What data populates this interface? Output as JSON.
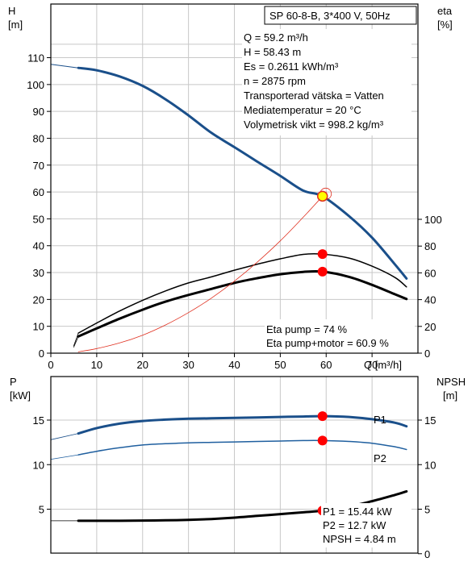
{
  "colors": {
    "head": "#1a4f8a",
    "p1": "#1a4f8a",
    "p2": "#1f5f9f",
    "eta": "#000000",
    "system": "#e03020",
    "npsh": "#000000",
    "marker": "#ff0000",
    "duty": "#ffff00"
  },
  "chart_data": [
    {
      "type": "line",
      "title": "SP 60-8-B, 3*400 V, 50Hz",
      "xlabel": "Q [m³/h]",
      "ylabel_left": {
        "name": "H",
        "unit": "[m]"
      },
      "ylabel_right": {
        "name": "eta",
        "unit": "[%]"
      },
      "xlim": [
        0,
        80
      ],
      "ylim_left": [
        0,
        120
      ],
      "ylim_right": [
        0,
        100
      ],
      "xticks": [
        0,
        10,
        20,
        30,
        40,
        50,
        60,
        70
      ],
      "yticks_left": [
        0,
        10,
        20,
        30,
        40,
        50,
        60,
        70,
        80,
        90,
        100,
        110
      ],
      "yticks_right": [
        0,
        20,
        40,
        60,
        80,
        100
      ],
      "grid": true,
      "duty_point": {
        "x": 59.2,
        "y": 58.43
      },
      "info_lines": [
        "Q = 59.2 m³/h",
        "H = 58.43 m",
        "Es = 0.2611 kWh/m³",
        "n = 2875 rpm",
        "Transporterad vätska = Vatten",
        "Mediatemperatur = 20 °C",
        "Volymetrisk vikt = 998.2 kg/m³"
      ],
      "eta_lines": [
        "Eta pump = 74 %",
        "Eta pump+motor = 60.9 %"
      ],
      "series": [
        {
          "axis": "left",
          "color_key": "head",
          "width": 3,
          "x": [
            6,
            10,
            15,
            20,
            25,
            30,
            35,
            40,
            45,
            50,
            55,
            59.2,
            65,
            70,
            75,
            77.5
          ],
          "y": [
            106.2,
            105.3,
            103.0,
            99.5,
            94.5,
            88.5,
            82.0,
            76.7,
            71.3,
            66.0,
            60.5,
            58.43,
            51.0,
            43.0,
            33.0,
            27.8
          ]
        },
        {
          "axis": "left",
          "color_key": "head",
          "width": 1,
          "extrapolated": true,
          "x": [
            0,
            6
          ],
          "y": [
            107.5,
            106.2
          ]
        },
        {
          "axis": "right",
          "color_key": "eta",
          "width": 1.5,
          "x": [
            6,
            10,
            15,
            20,
            25,
            30,
            35,
            40,
            45,
            50,
            55,
            59.2,
            65,
            70,
            75,
            77.5
          ],
          "y": [
            15.0,
            22.5,
            31.5,
            39.5,
            46.5,
            52.5,
            57.0,
            62.0,
            66.5,
            70.5,
            73.8,
            74.0,
            71.0,
            65.0,
            56.5,
            49.5
          ]
        },
        {
          "axis": "right",
          "color_key": "eta",
          "width": 3,
          "x": [
            6,
            10,
            15,
            20,
            25,
            30,
            35,
            40,
            45,
            50,
            55,
            59.2,
            65,
            70,
            75,
            77.5
          ],
          "y": [
            12.5,
            18.5,
            25.8,
            32.5,
            38.5,
            43.5,
            48.0,
            52.5,
            56.0,
            59.0,
            60.7,
            60.9,
            57.0,
            51.0,
            44.0,
            40.5
          ]
        },
        {
          "axis": "right",
          "color_key": "eta",
          "width": 0.8,
          "extrapolated": true,
          "x": [
            5,
            6
          ],
          "y": [
            5.5,
            15.0
          ]
        },
        {
          "axis": "right",
          "color_key": "eta",
          "width": 0.8,
          "extrapolated": true,
          "x": [
            5,
            6
          ],
          "y": [
            4.5,
            12.5
          ]
        },
        {
          "axis": "left",
          "color_key": "system",
          "width": 0.8,
          "x": [
            6,
            10,
            15,
            20,
            25,
            30,
            35,
            40,
            45,
            50,
            55,
            59.2,
            60
          ],
          "y": [
            0.5,
            1.7,
            3.8,
            6.7,
            10.5,
            15.1,
            20.5,
            26.8,
            33.9,
            41.8,
            50.6,
            58.43,
            60.0
          ]
        }
      ],
      "markers": [
        {
          "axis": "right",
          "x": 59.2,
          "y": 74.0,
          "color_key": "marker"
        },
        {
          "axis": "right",
          "x": 59.2,
          "y": 60.9,
          "color_key": "marker"
        }
      ]
    },
    {
      "type": "line",
      "xlabel": "",
      "ylabel_left": {
        "name": "P",
        "unit": "[kW]"
      },
      "ylabel_right": {
        "name": "NPSH",
        "unit": "[m]"
      },
      "xlim": [
        0,
        80
      ],
      "ylim_left": [
        0,
        18
      ],
      "ylim_right": [
        0,
        18
      ],
      "yticks_left": [
        5,
        10,
        15
      ],
      "yticks_right": [
        0,
        5,
        10,
        15
      ],
      "grid": true,
      "result_lines": [
        "P1 = 15.44 kW",
        "P2 = 12.7 kW",
        "NPSH = 4.84 m"
      ],
      "series": [
        {
          "name": "P1",
          "axis": "left",
          "color_key": "p1",
          "width": 3,
          "x": [
            6,
            10,
            15,
            20,
            25,
            30,
            35,
            40,
            45,
            50,
            55,
            59.2,
            65,
            70,
            75,
            77.5
          ],
          "y": [
            13.5,
            14.1,
            14.6,
            14.9,
            15.05,
            15.15,
            15.2,
            15.25,
            15.3,
            15.35,
            15.4,
            15.44,
            15.35,
            15.1,
            14.7,
            14.3
          ]
        },
        {
          "name": "P2",
          "axis": "left",
          "color_key": "p2",
          "width": 1.5,
          "x": [
            6,
            10,
            15,
            20,
            25,
            30,
            35,
            40,
            45,
            50,
            55,
            59.2,
            65,
            70,
            75,
            77.5
          ],
          "y": [
            11.1,
            11.5,
            11.9,
            12.2,
            12.35,
            12.45,
            12.5,
            12.55,
            12.6,
            12.65,
            12.7,
            12.7,
            12.6,
            12.4,
            12.0,
            11.7
          ]
        },
        {
          "axis": "left",
          "color_key": "p1",
          "width": 0.8,
          "extrapolated": true,
          "x": [
            0,
            6
          ],
          "y": [
            12.8,
            13.5
          ]
        },
        {
          "axis": "left",
          "color_key": "p2",
          "width": 0.8,
          "extrapolated": true,
          "x": [
            0,
            6
          ],
          "y": [
            10.6,
            11.1
          ]
        },
        {
          "name": "NPSH",
          "axis": "right",
          "color_key": "npsh",
          "width": 3,
          "x": [
            6,
            10,
            15,
            20,
            25,
            30,
            35,
            40,
            45,
            50,
            55,
            59.2,
            65,
            70,
            75,
            77.5
          ],
          "y": [
            3.7,
            3.7,
            3.7,
            3.72,
            3.75,
            3.8,
            3.9,
            4.05,
            4.25,
            4.45,
            4.65,
            4.84,
            5.3,
            5.9,
            6.6,
            7.0
          ]
        },
        {
          "axis": "right",
          "color_key": "npsh",
          "width": 0.8,
          "extrapolated": true,
          "x": [
            0,
            6
          ],
          "y": [
            3.7,
            3.7
          ]
        }
      ],
      "markers": [
        {
          "axis": "left",
          "x": 59.2,
          "y": 15.44,
          "color_key": "marker"
        },
        {
          "axis": "left",
          "x": 59.2,
          "y": 12.7,
          "color_key": "marker"
        },
        {
          "axis": "right",
          "x": 59.2,
          "y": 4.84,
          "color_key": "marker"
        }
      ]
    }
  ]
}
